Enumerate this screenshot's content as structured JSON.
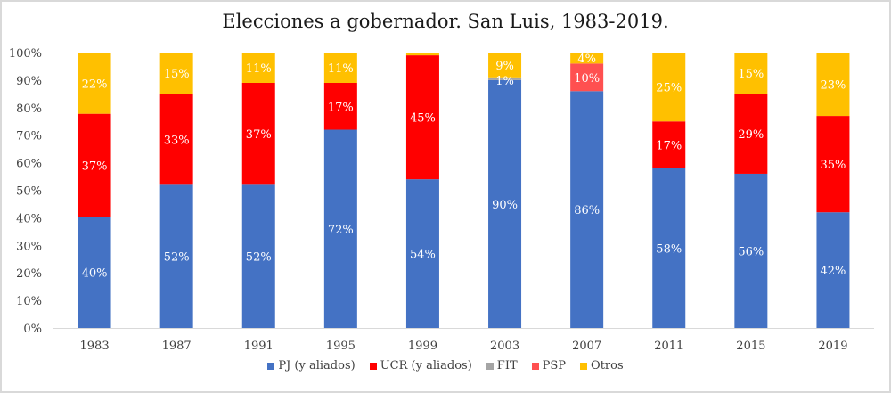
{
  "chart_data": {
    "type": "bar",
    "stacked": "percent",
    "title": "Elecciones a gobernador. San Luis, 1983-2019.",
    "xlabel": "",
    "ylabel": "",
    "ylim": [
      0,
      100
    ],
    "yticks": [
      "0%",
      "10%",
      "20%",
      "30%",
      "40%",
      "50%",
      "60%",
      "70%",
      "80%",
      "90%",
      "100%"
    ],
    "grid": false,
    "legend_position": "bottom",
    "categories": [
      "1983",
      "1987",
      "1991",
      "1995",
      "1999",
      "2003",
      "2007",
      "2011",
      "2015",
      "2019"
    ],
    "series": [
      {
        "name": "PJ (y aliados)",
        "color": "#4472C4",
        "values": [
          40,
          52,
          52,
          72,
          54,
          90,
          86,
          58,
          56,
          42
        ],
        "labels": [
          "40%",
          "52%",
          "52%",
          "72%",
          "54%",
          "90%",
          "86%",
          "58%",
          "56%",
          "42%"
        ]
      },
      {
        "name": "UCR (y aliados)",
        "color": "#FF0000",
        "values": [
          37,
          33,
          37,
          17,
          45,
          0,
          0,
          17,
          29,
          35
        ],
        "labels": [
          "37%",
          "33%",
          "37%",
          "17%",
          "45%",
          "",
          "",
          "17%",
          "29%",
          "35%"
        ]
      },
      {
        "name": "FIT",
        "color": "#A5A5A5",
        "values": [
          0,
          0,
          0,
          0,
          0,
          1,
          0,
          0,
          0,
          0
        ],
        "labels": [
          "",
          "",
          "",
          "",
          "",
          "1%",
          "",
          "",
          "",
          ""
        ]
      },
      {
        "name": "PSP",
        "color": "#FF5050",
        "values": [
          0,
          0,
          0,
          0,
          0,
          0,
          10,
          0,
          0,
          0
        ],
        "labels": [
          "",
          "",
          "",
          "",
          "",
          "",
          "10%",
          "",
          "",
          ""
        ]
      },
      {
        "name": "Otros",
        "color": "#FFC000",
        "values": [
          22,
          15,
          11,
          11,
          1,
          9,
          4,
          25,
          15,
          23
        ],
        "labels": [
          "22%",
          "15%",
          "11%",
          "11%",
          "",
          "9%",
          "4%",
          "25%",
          "15%",
          "23%"
        ]
      }
    ]
  }
}
